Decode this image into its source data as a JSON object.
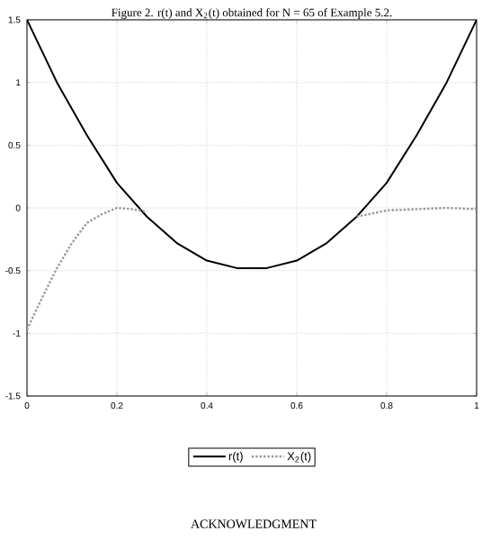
{
  "chart_data": {
    "type": "line",
    "title": "Figure 2. r(t) and X$_{2}$(t) obtained for N = 65 of Example 5.2.",
    "annotations": [
      "ACKNOWLEDGMENT"
    ],
    "x": [
      0,
      0.0333,
      0.0667,
      0.1,
      0.1333,
      0.1667,
      0.2,
      0.2333,
      0.2667,
      0.3333,
      0.4,
      0.4667,
      0.5333,
      0.6,
      0.6667,
      0.7333,
      0.8,
      0.8667,
      0.9333,
      1
    ],
    "series": [
      {
        "name": "r(t)",
        "color": "#000000",
        "line_style": "solid",
        "x": [
          0,
          0.0667,
          0.1333,
          0.2,
          0.2667,
          0.3333,
          0.4,
          0.4667,
          0.5333,
          0.6,
          0.6667,
          0.7333,
          0.8,
          0.8667,
          0.9333,
          1
        ],
        "values": [
          1.5,
          1.0,
          0.58,
          0.2,
          -0.07,
          -0.28,
          -0.42,
          -0.48,
          -0.48,
          -0.42,
          -0.28,
          -0.07,
          0.2,
          0.58,
          1.0,
          1.5
        ]
      },
      {
        "name": "X$_{2}$(t)",
        "color": "#999999",
        "line_style": "dotted",
        "values": [
          -0.97,
          -0.72,
          -0.48,
          -0.28,
          -0.12,
          -0.05,
          0.0,
          -0.01,
          -0.03,
          null,
          null,
          null,
          null,
          null,
          null,
          -0.07,
          -0.02,
          -0.01,
          0.0,
          -0.01
        ]
      }
    ],
    "xlim": [
      0,
      1
    ],
    "ylim": [
      -1.5,
      1.5
    ],
    "xticks": [
      0,
      0.2,
      0.4,
      0.6,
      0.8,
      1
    ],
    "yticks": [
      -1.5,
      -1,
      -0.5,
      0,
      0.5,
      1,
      1.5
    ],
    "grid": true,
    "legend": "bottom"
  }
}
